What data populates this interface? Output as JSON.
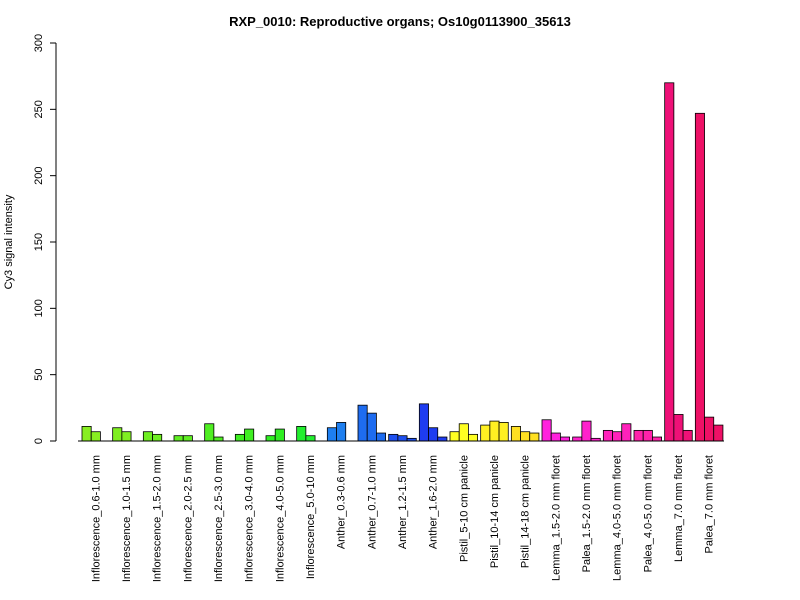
{
  "chart_data": {
    "type": "bar",
    "title": "RXP_0010: Reproductive organs; Os10g0113900_35613",
    "ylabel": "Cy3 signal intensity",
    "xlabel": "",
    "ylim": [
      0,
      300
    ],
    "yticks": [
      0,
      50,
      100,
      150,
      200,
      250,
      300
    ],
    "grid": false,
    "groups": [
      {
        "label": "Inflorescence_0.6-1.0 mm",
        "color": "#88ee22",
        "values": [
          11,
          7
        ]
      },
      {
        "label": "Inflorescence_1.0-1.5 mm",
        "color": "#7fee22",
        "values": [
          10,
          7
        ]
      },
      {
        "label": "Inflorescence_1.5-2.0 mm",
        "color": "#6fee22",
        "values": [
          7,
          5
        ]
      },
      {
        "label": "Inflorescence_2.0-2.5 mm",
        "color": "#5fee22",
        "values": [
          4,
          4
        ]
      },
      {
        "label": "Inflorescence_2.5-3.0 mm",
        "color": "#4fee22",
        "values": [
          13,
          3
        ]
      },
      {
        "label": "Inflorescence_3.0-4.0 mm",
        "color": "#3fee22",
        "values": [
          5,
          9
        ]
      },
      {
        "label": "Inflorescence_4.0-5.0 mm",
        "color": "#2fee22",
        "values": [
          4,
          9
        ]
      },
      {
        "label": "Inflorescence_5.0-10 mm",
        "color": "#22ee2f",
        "values": [
          11,
          4
        ]
      },
      {
        "label": "Anther_0.3-0.6 mm",
        "color": "#1e7ff0",
        "values": [
          10,
          14
        ]
      },
      {
        "label": "Anther_0.7-1.0 mm",
        "color": "#1e6cf0",
        "values": [
          27,
          21,
          6
        ]
      },
      {
        "label": "Anther_1.2-1.5 mm",
        "color": "#1e50f0",
        "values": [
          5,
          4,
          2
        ]
      },
      {
        "label": "Anther_1.6-2.0 mm",
        "color": "#1e3cf0",
        "values": [
          28,
          10,
          3
        ]
      },
      {
        "label": "Pistil_5-10 cm panicle",
        "color": "#ffff22",
        "values": [
          7,
          13,
          5
        ]
      },
      {
        "label": "Pistil_10-14 cm panicle",
        "color": "#fff022",
        "values": [
          12,
          15,
          14
        ]
      },
      {
        "label": "Pistil_14-18 cm panicle",
        "color": "#ffe022",
        "values": [
          11,
          7,
          6
        ]
      },
      {
        "label": "Lemma_1.5-2.0 mm floret",
        "color": "#ff22dd",
        "values": [
          16,
          6,
          3
        ]
      },
      {
        "label": "Palea_1.5-2.0 mm floret",
        "color": "#ff22cc",
        "values": [
          3,
          15,
          2
        ]
      },
      {
        "label": "Lemma_4.0-5.0 mm floret",
        "color": "#ff22bb",
        "values": [
          8,
          7,
          13
        ]
      },
      {
        "label": "Palea_4.0-5.0 mm floret",
        "color": "#ff22aa",
        "values": [
          8,
          8,
          3
        ]
      },
      {
        "label": "Lemma_7.0 mm floret",
        "color": "#ee1177",
        "values": [
          270,
          20,
          8
        ]
      },
      {
        "label": "Palea_7.0 mm floret",
        "color": "#ee1166",
        "values": [
          247,
          18,
          12
        ]
      }
    ]
  }
}
